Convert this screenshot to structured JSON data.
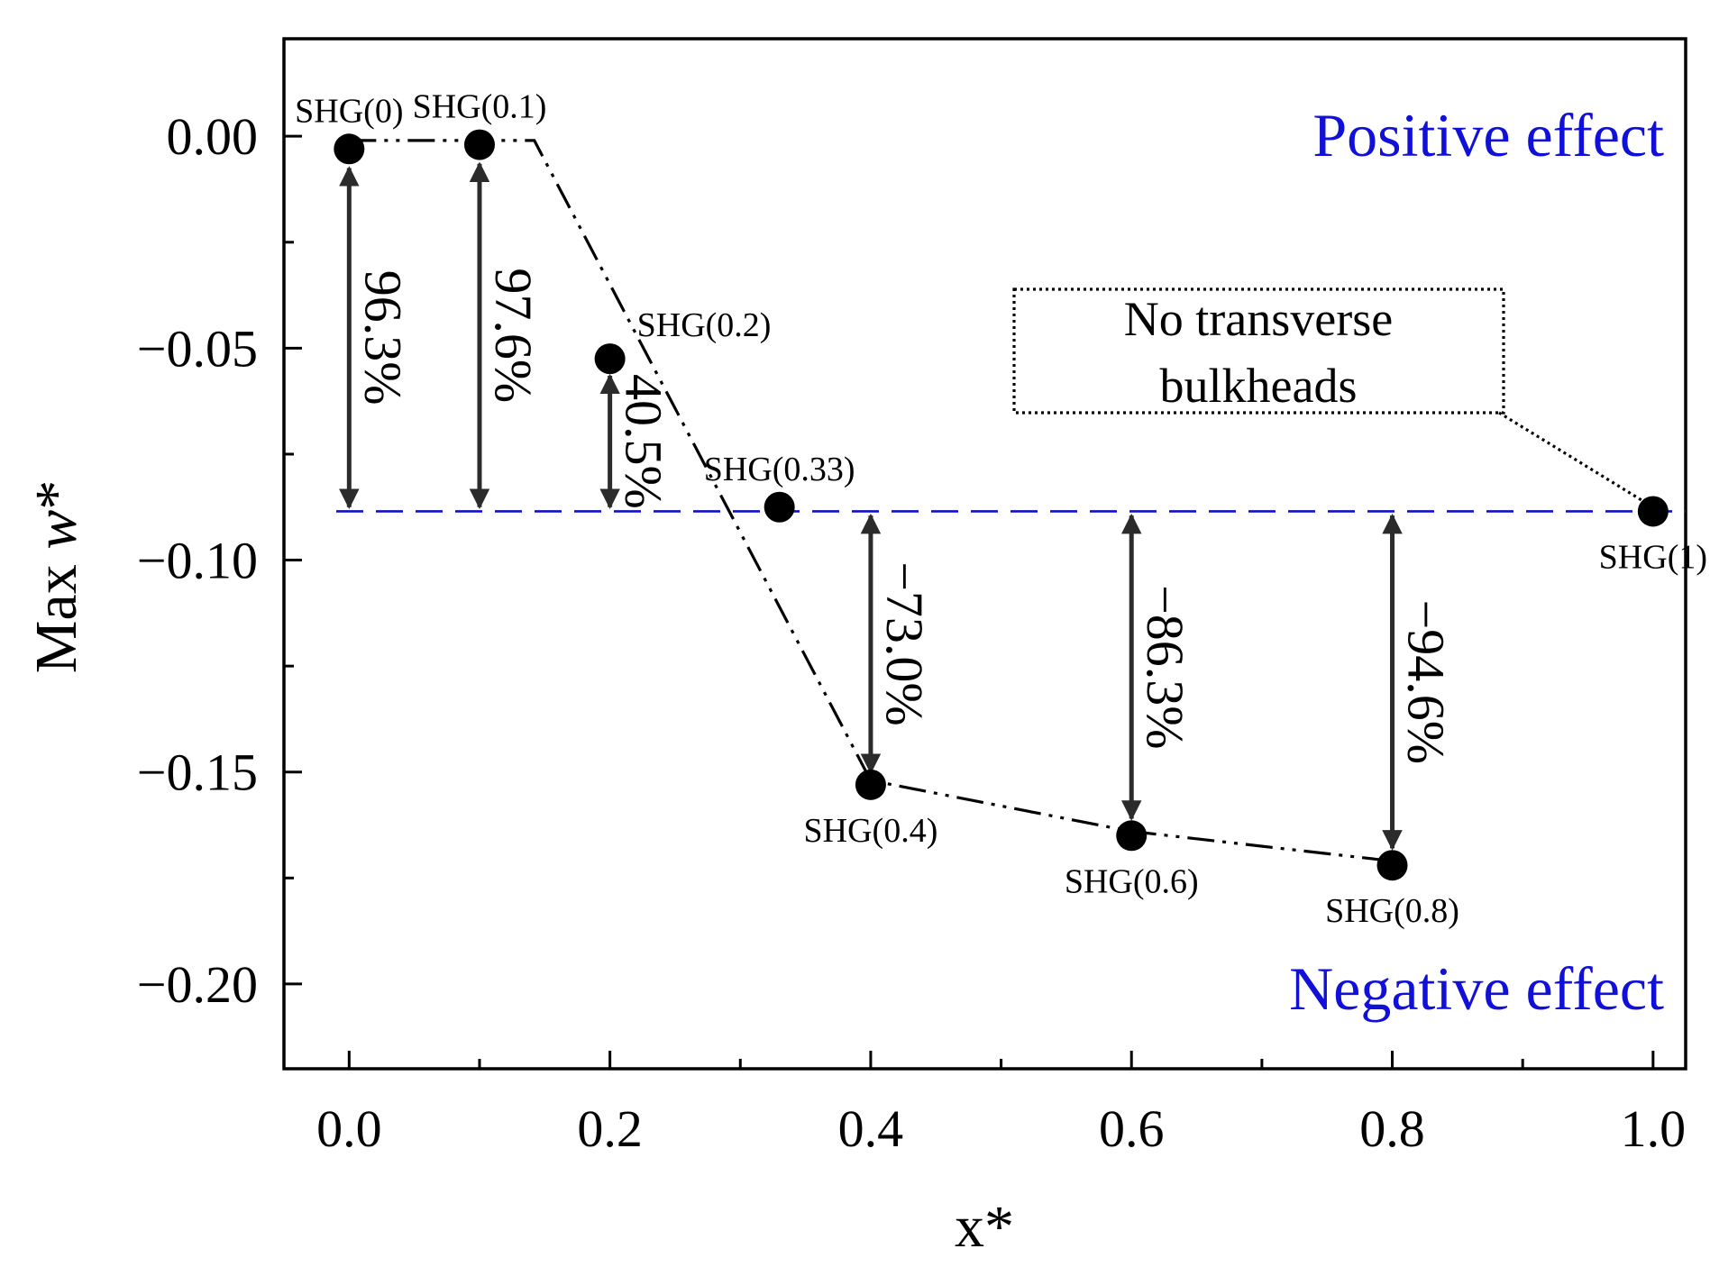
{
  "chart_data": {
    "type": "scatter",
    "title": "",
    "xlabel": "x*",
    "ylabel_prefix": "Max ",
    "ylabel_var": "w",
    "ylabel_suffix": "*",
    "xlim": [
      -0.05,
      1.025
    ],
    "ylim": [
      -0.22,
      0.023
    ],
    "x_ticks": [
      0.0,
      0.2,
      0.4,
      0.6,
      0.8,
      1.0
    ],
    "x_tick_labels": [
      "0.0",
      "0.2",
      "0.4",
      "0.6",
      "0.8",
      "1.0"
    ],
    "x_minor_ticks": [
      0.1,
      0.3,
      0.5,
      0.7,
      0.9
    ],
    "y_ticks": [
      0.0,
      -0.05,
      -0.1,
      -0.15,
      -0.2
    ],
    "y_tick_labels": [
      "0.00",
      "−0.05",
      "−0.10",
      "−0.15",
      "−0.20"
    ],
    "y_minor_ticks": [
      -0.025,
      -0.075,
      -0.125,
      -0.175
    ],
    "reference_value": -0.0885,
    "points": [
      {
        "label": "SHG(0)",
        "x": 0.0,
        "y": -0.003,
        "label_pos": "above"
      },
      {
        "label": "SHG(0.1)",
        "x": 0.1,
        "y": -0.002,
        "label_pos": "above"
      },
      {
        "label": "SHG(0.2)",
        "x": 0.2,
        "y": -0.0525,
        "label_pos": "above-right"
      },
      {
        "label": "SHG(0.33)",
        "x": 0.33,
        "y": -0.0875,
        "label_pos": "above"
      },
      {
        "label": "SHG(0.4)",
        "x": 0.4,
        "y": -0.153,
        "label_pos": "below"
      },
      {
        "label": "SHG(0.6)",
        "x": 0.6,
        "y": -0.165,
        "label_pos": "below"
      },
      {
        "label": "SHG(0.8)",
        "x": 0.8,
        "y": -0.172,
        "label_pos": "below"
      },
      {
        "label": "SHG(1)",
        "x": 1.0,
        "y": -0.0885,
        "label_pos": "below"
      }
    ],
    "trend_line": {
      "x": [
        0.0,
        0.142,
        0.4,
        0.6,
        0.8
      ],
      "y": [
        -0.001,
        -0.001,
        -0.152,
        -0.164,
        -0.171
      ]
    },
    "arrows": [
      {
        "x": 0.0,
        "y_from": -0.0075,
        "y_to": -0.0875,
        "label": "96.3%"
      },
      {
        "x": 0.1,
        "y_from": -0.0065,
        "y_to": -0.0875,
        "label": "97.6%"
      },
      {
        "x": 0.2,
        "y_from": -0.0565,
        "y_to": -0.0875,
        "label": "40.5%"
      },
      {
        "x": 0.4,
        "y_from": -0.0895,
        "y_to": -0.15,
        "label": "−73.0%"
      },
      {
        "x": 0.6,
        "y_from": -0.0895,
        "y_to": -0.161,
        "label": "−86.3%"
      },
      {
        "x": 0.8,
        "y_from": -0.0895,
        "y_to": -0.168,
        "label": "−94.6%"
      }
    ],
    "annotations": {
      "positive": "Positive effect",
      "negative": "Negative effect",
      "callout_line1": "No transverse",
      "callout_line2": "bulkheads",
      "callout_target": "SHG(1)"
    },
    "colors": {
      "axis": "#000000",
      "marker": "#000000",
      "arrow": "#2b2b2b",
      "reference": "#1010c8",
      "effect_text": "#1010d8"
    },
    "grid": false,
    "legend": "none"
  }
}
